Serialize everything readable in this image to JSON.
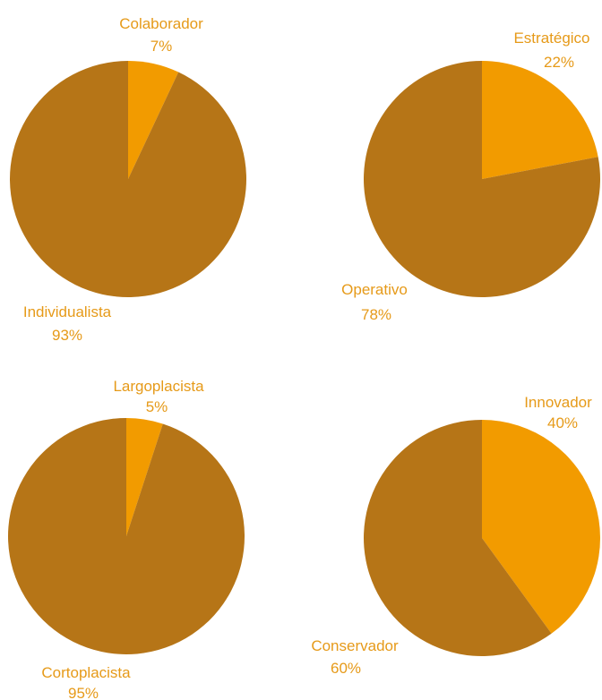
{
  "chart_data": [
    {
      "type": "pie",
      "slices": [
        {
          "label": "Colaborador",
          "value": 7,
          "value_label": "7%",
          "color": "#F29B00"
        },
        {
          "label": "Individualista",
          "value": 93,
          "value_label": "93%",
          "color": "#B67517"
        }
      ]
    },
    {
      "type": "pie",
      "slices": [
        {
          "label": "Estratégico",
          "value": 22,
          "value_label": "22%",
          "color": "#F29B00"
        },
        {
          "label": "Operativo",
          "value": 78,
          "value_label": "78%",
          "color": "#B67517"
        }
      ]
    },
    {
      "type": "pie",
      "slices": [
        {
          "label": "Largoplacista",
          "value": 5,
          "value_label": "5%",
          "color": "#F29B00"
        },
        {
          "label": "Cortoplacista",
          "value": 95,
          "value_label": "95%",
          "color": "#B67517"
        }
      ]
    },
    {
      "type": "pie",
      "slices": [
        {
          "label": "Innovador",
          "value": 40,
          "value_label": "40%",
          "color": "#F29B00"
        },
        {
          "label": "Conservador",
          "value": 60,
          "value_label": "60%",
          "color": "#B67517"
        }
      ]
    }
  ],
  "label_color": "#E69A19"
}
